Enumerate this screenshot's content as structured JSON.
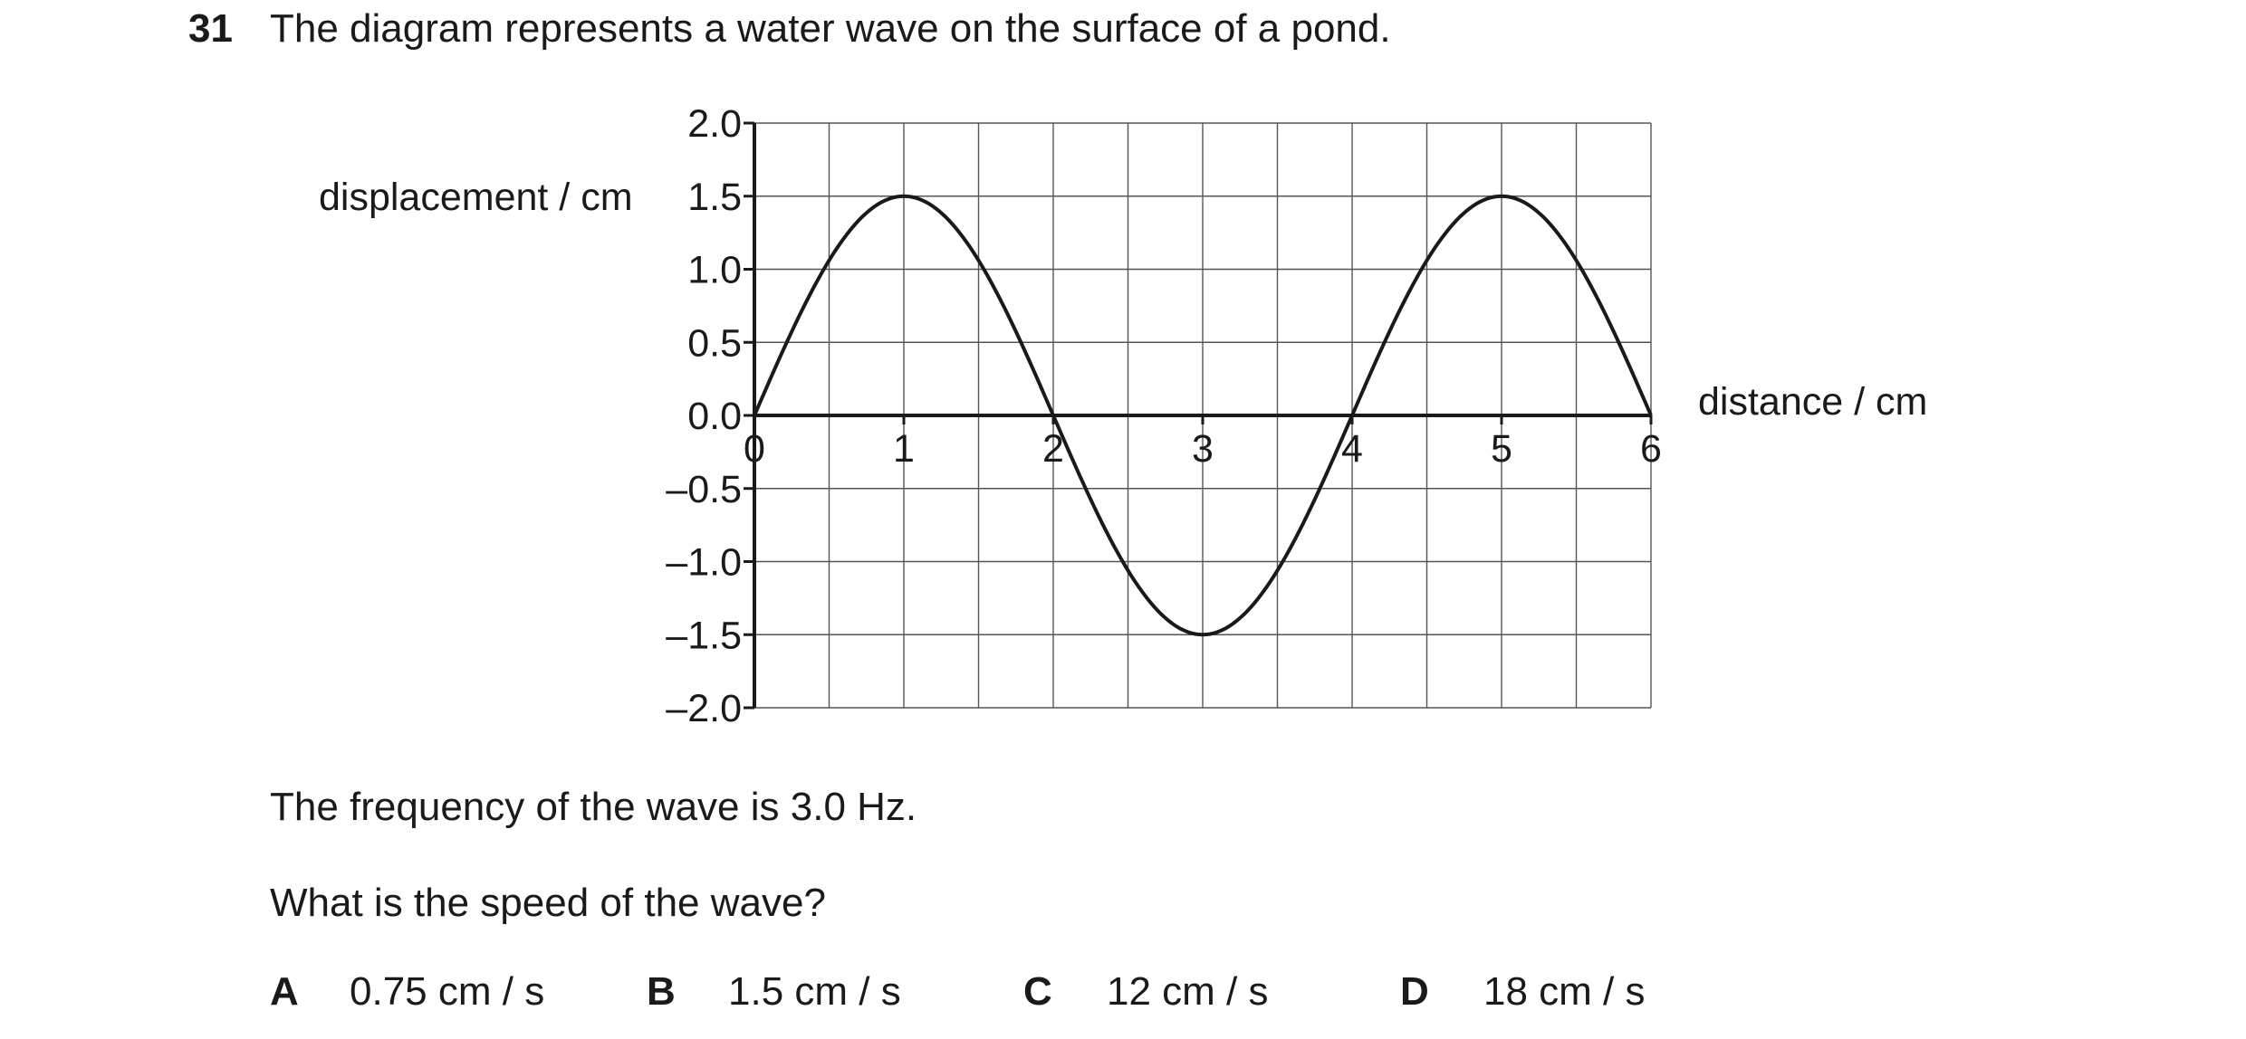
{
  "question": {
    "number": "31",
    "stem": "The diagram represents a water wave on the surface of a pond.",
    "frequency_statement": "The frequency of the wave is 3.0 Hz.",
    "prompt": "What is the speed of the wave?"
  },
  "options": [
    {
      "letter": "A",
      "value": "0.75 cm / s"
    },
    {
      "letter": "B",
      "value": "1.5 cm / s"
    },
    {
      "letter": "C",
      "value": "12 cm / s"
    },
    {
      "letter": "D",
      "value": "18 cm / s"
    }
  ],
  "chart_data": {
    "type": "line",
    "title": "",
    "xlabel": "distance / cm",
    "ylabel": "displacement / cm",
    "xlim": [
      0,
      6
    ],
    "ylim": [
      -2.0,
      2.0
    ],
    "x_ticks": [
      "0",
      "1",
      "2",
      "3",
      "4",
      "5",
      "6"
    ],
    "y_ticks": [
      "2.0",
      "1.5",
      "1.0",
      "0.5",
      "0.0",
      "–0.5",
      "–1.0",
      "–1.5",
      "–2.0"
    ],
    "grid": true,
    "series": [
      {
        "x": [
          0,
          0.25,
          0.5,
          0.75,
          1,
          1.25,
          1.5,
          1.75,
          2,
          2.25,
          2.5,
          2.75,
          3,
          3.25,
          3.5,
          3.75,
          4,
          4.25,
          4.5,
          4.75,
          5,
          5.25,
          5.5,
          5.75,
          6
        ],
        "y": [
          0,
          0.57,
          1.06,
          1.39,
          1.5,
          1.39,
          1.06,
          0.57,
          0,
          -0.57,
          -1.06,
          -1.39,
          -1.5,
          -1.39,
          -1.06,
          -0.57,
          0,
          0.57,
          1.06,
          1.39,
          1.5,
          1.39,
          1.06,
          0.57,
          0
        ]
      }
    ]
  }
}
